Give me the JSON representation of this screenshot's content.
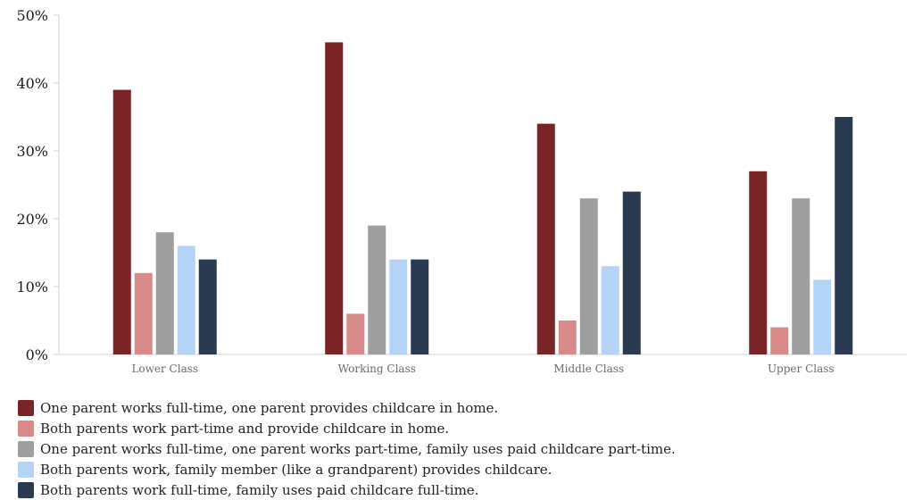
{
  "chart_data": {
    "type": "bar",
    "title": "",
    "xlabel": "",
    "ylabel": "",
    "ylim": [
      0,
      50
    ],
    "yticks": [
      "0%",
      "10%",
      "20%",
      "30%",
      "40%",
      "50%"
    ],
    "ytick_values": [
      0,
      10,
      20,
      30,
      40,
      50
    ],
    "categories": [
      "Lower Class",
      "Working Class",
      "Middle Class",
      "Upper Class"
    ],
    "legend_position": "bottom",
    "grid": false,
    "series": [
      {
        "name": "One parent works full-time, one parent provides childcare in home.",
        "color": "#7b2427",
        "values": [
          39,
          46,
          34,
          27
        ]
      },
      {
        "name": "Both parents work part-time and provide childcare in home.",
        "color": "#d88a8a",
        "values": [
          12,
          6,
          5,
          4
        ]
      },
      {
        "name": "One parent works full-time, one parent works part-time, family uses paid childcare part-time.",
        "color": "#9e9e9e",
        "values": [
          18,
          19,
          23,
          23
        ]
      },
      {
        "name": "Both parents work, family member (like a grandparent) provides childcare.",
        "color": "#b3d4f7",
        "values": [
          16,
          14,
          13,
          11
        ]
      },
      {
        "name": "Both parents work full-time, family uses paid childcare full-time.",
        "color": "#29394f",
        "values": [
          14,
          14,
          24,
          35
        ]
      }
    ]
  }
}
